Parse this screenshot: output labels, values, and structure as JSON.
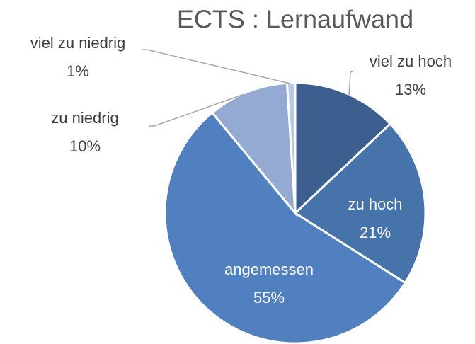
{
  "chart_data": {
    "type": "pie",
    "title": "ECTS : Lernaufwand",
    "categories": [
      "viel zu hoch",
      "zu hoch",
      "angemessen",
      "zu niedrig",
      "viel zu niedrig"
    ],
    "values": [
      13,
      21,
      55,
      10,
      1
    ],
    "value_labels": [
      "13%",
      "21%",
      "55%",
      "10%",
      "1%"
    ],
    "colors": [
      "#3c5f8f",
      "#4573aa",
      "#5080bf",
      "#95aad3",
      "#b9c8e4"
    ]
  }
}
